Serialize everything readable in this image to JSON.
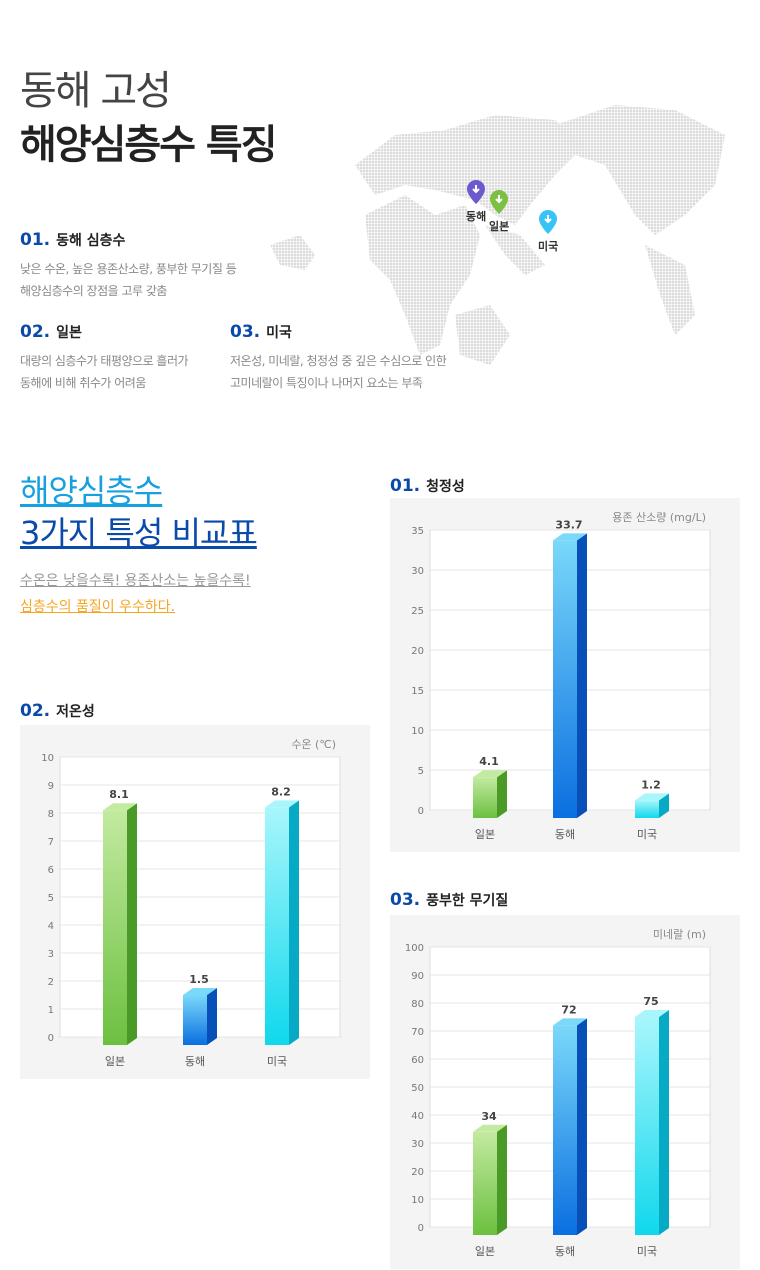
{
  "header": {
    "title_line1": "동해 고성",
    "title_line2": "해양심층수 특징"
  },
  "map_pins": [
    {
      "label": "동해",
      "color": "#6a5acd"
    },
    {
      "label": "일본",
      "color": "#7cc043"
    },
    {
      "label": "미국",
      "color": "#37c3f5"
    }
  ],
  "features": [
    {
      "num": "01.",
      "title": "동해 심층수",
      "desc": [
        "낮은 수온, 높은 용존산소량, 풍부한 무기질 등",
        "해양심층수의 장점을 고루 갖춤"
      ]
    },
    {
      "num": "02.",
      "title": "일본",
      "desc": [
        "대량의 심층수가 태평양으로 흘러가",
        "동해에 비해 취수가 어려움"
      ]
    },
    {
      "num": "03.",
      "title": "미국",
      "desc": [
        "저온성, 미네랄, 청정성 중 깊은 수심으로 인한",
        "고미네랄이 특징이나 나머지 요소는 부족"
      ]
    }
  ],
  "comparison": {
    "title_line1": "해양심층수",
    "title_line2": "3가지 특성 비교표",
    "sub_line1": "수온은 낮을수록! 용존산소는 높을수록!",
    "sub_line2": "심층수의 품질이 우수하다."
  },
  "colors": {
    "japan": "#7cc043",
    "donghae": "#1a8fe0",
    "usa": "#1fd8ee",
    "accent": "#0a4aa8"
  },
  "chart_data": [
    {
      "type": "bar",
      "num": "01.",
      "title": "청정성",
      "unit_label": "용존 산소량 (mg/L)",
      "categories": [
        "일본",
        "동해",
        "미국"
      ],
      "values": [
        4.1,
        33.7,
        1.2
      ],
      "value_labels": [
        "4.1",
        "33.7",
        "1.2"
      ],
      "ylim": [
        0,
        35
      ],
      "yticks": [
        "0",
        "5",
        "10",
        "15",
        "20",
        "25",
        "30",
        "35"
      ],
      "grid": true
    },
    {
      "type": "bar",
      "num": "02.",
      "title": "저온성",
      "unit_label": "수온 (℃)",
      "categories": [
        "일본",
        "동해",
        "미국"
      ],
      "values": [
        8.1,
        1.5,
        8.2
      ],
      "value_labels": [
        "8.1",
        "1.5",
        "8.2"
      ],
      "ylim": [
        0,
        10
      ],
      "yticks": [
        "0",
        "1",
        "2",
        "3",
        "4",
        "5",
        "6",
        "7",
        "8",
        "9",
        "10"
      ],
      "grid": true
    },
    {
      "type": "bar",
      "num": "03.",
      "title": "풍부한 무기질",
      "unit_label": "미네랄 (m)",
      "categories": [
        "일본",
        "동해",
        "미국"
      ],
      "values": [
        34,
        72,
        75
      ],
      "value_labels": [
        "34",
        "72",
        "75"
      ],
      "ylim": [
        0,
        100
      ],
      "yticks": [
        "0",
        "10",
        "20",
        "30",
        "40",
        "50",
        "60",
        "70",
        "80",
        "90",
        "100"
      ],
      "grid": true
    }
  ]
}
